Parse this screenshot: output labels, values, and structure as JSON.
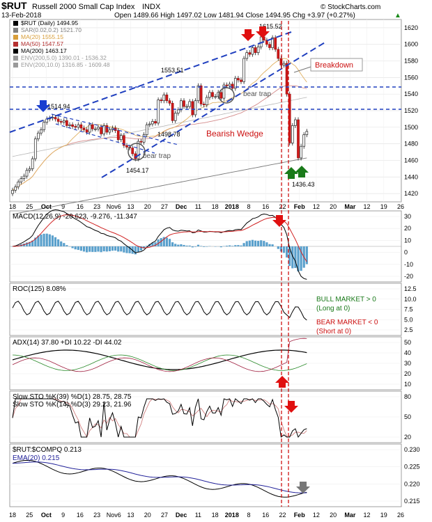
{
  "header": {
    "symbol": "$RUT",
    "name": "Russell 2000 Small Cap Index",
    "exchange": "INDX",
    "date": "13-Feb-2018",
    "ohlc": "Open 1489.66  High 1497.02  Low 1481.94  Close 1494.95  Chg +3.97 (+0.27%)",
    "close_marker": "▲",
    "brand": "© StockCharts.com"
  },
  "price_legend": [
    {
      "label": "$RUT (Daily) 1494.95",
      "color": "#000000"
    },
    {
      "label": "SAR(0.02,0.2) 1521.70",
      "color": "#7f7f7f"
    },
    {
      "label": "MA(20) 1555.15",
      "color": "#d89e3a"
    },
    {
      "label": "MA(50) 1547.57",
      "color": "#b53030"
    },
    {
      "label": "MA(200) 1463.17",
      "color": "#000000"
    },
    {
      "label": "ENV(200,5.0) 1390.01 - 1536.32",
      "color": "#9a9a9a"
    },
    {
      "label": "ENV(200,10.0) 1316.85 - 1609.48",
      "color": "#9a9a9a"
    }
  ],
  "annotations": {
    "peak_left": "1514.94",
    "peak_mid": "1553.51",
    "peak_top": "1615.52",
    "low_mid": "1498.78",
    "low_left": "1454.17",
    "low_right": "1436.43",
    "bear_trap_1": "bear trap",
    "bear_trap_2": "bear trap",
    "wedge": "Bearish Wedge",
    "breakdown": "Breakdown"
  },
  "x_labels": [
    "18",
    "25",
    "Oct",
    "9",
    "16",
    "23",
    "Nov6",
    "13",
    "20",
    "27",
    "Dec",
    "11",
    "18",
    "2018",
    "8",
    "16",
    "22",
    "Feb",
    "12",
    "20",
    "Mar",
    "12",
    "19",
    "26"
  ],
  "panels": {
    "macd": {
      "label": "MACD(12,26,9) -20.623, -9.276, -11.347",
      "ticks": [
        "30",
        "20",
        "10",
        "0",
        "-10",
        "-20"
      ]
    },
    "roc": {
      "label": "ROC(125) 8.08%",
      "ticks": [
        "12.5",
        "10.0",
        "7.5",
        "5.0",
        "2.5"
      ],
      "bull": "BULL MARKET > 0",
      "bull_sub": "(Long at 0)",
      "bear": "BEAR MARKET < 0",
      "bear_sub": "(Short at 0)"
    },
    "adx": {
      "label": "ADX(14) 37.80  +DI 10.22  -DI 44.02",
      "ticks": [
        "50",
        "40",
        "30",
        "20",
        "10"
      ]
    },
    "sto": {
      "label1": "Slow STO %K(39) %D(1) 28.75, 28.75",
      "label2": "Slow STO %K(14) %D(3) 29.23, 21.96",
      "ticks": [
        "80",
        "50",
        "20"
      ]
    },
    "rel": {
      "label": "$RUT:$COMPQ 0.213",
      "ema_label": "EMA(20) 0.215",
      "ticks": [
        "0.230",
        "0.225",
        "0.220",
        "0.215"
      ]
    }
  },
  "chart_data": {
    "type": "candlestick",
    "title": "$RUT Russell 2000 Small Cap Index INDX",
    "dates": [
      "2017-09-15",
      "2017-09-18",
      "2017-09-19",
      "2017-09-20",
      "2017-09-21",
      "2017-09-22",
      "2017-09-25",
      "2017-09-26",
      "2017-09-27",
      "2017-09-28",
      "2017-09-29",
      "2017-10-02",
      "2017-10-03",
      "2017-10-04",
      "2017-10-05",
      "2017-10-06",
      "2017-10-09",
      "2017-10-10",
      "2017-10-11",
      "2017-10-12",
      "2017-10-13",
      "2017-10-16",
      "2017-10-17",
      "2017-10-18",
      "2017-10-19",
      "2017-10-20",
      "2017-10-23",
      "2017-10-24",
      "2017-10-25",
      "2017-10-26",
      "2017-10-27",
      "2017-10-30",
      "2017-10-31",
      "2017-11-01",
      "2017-11-02",
      "2017-11-03",
      "2017-11-06",
      "2017-11-07",
      "2017-11-08",
      "2017-11-09",
      "2017-11-10",
      "2017-11-13",
      "2017-11-14",
      "2017-11-15",
      "2017-11-16",
      "2017-11-17",
      "2017-11-20",
      "2017-11-21",
      "2017-11-22",
      "2017-11-24",
      "2017-11-27",
      "2017-11-28",
      "2017-11-29",
      "2017-11-30",
      "2017-12-01",
      "2017-12-04",
      "2017-12-05",
      "2017-12-06",
      "2017-12-07",
      "2017-12-08",
      "2017-12-11",
      "2017-12-12",
      "2017-12-13",
      "2017-12-14",
      "2017-12-15",
      "2017-12-18",
      "2017-12-19",
      "2017-12-20",
      "2017-12-21",
      "2017-12-22",
      "2017-12-26",
      "2017-12-27",
      "2017-12-28",
      "2017-12-29",
      "2018-01-02",
      "2018-01-03",
      "2018-01-04",
      "2018-01-05",
      "2018-01-08",
      "2018-01-09",
      "2018-01-10",
      "2018-01-11",
      "2018-01-12",
      "2018-01-16",
      "2018-01-17",
      "2018-01-18",
      "2018-01-19",
      "2018-01-22",
      "2018-01-23",
      "2018-01-24",
      "2018-01-25",
      "2018-01-26",
      "2018-01-29",
      "2018-01-30",
      "2018-01-31",
      "2018-02-01",
      "2018-02-02",
      "2018-02-05",
      "2018-02-06",
      "2018-02-07",
      "2018-02-08",
      "2018-02-09",
      "2018-02-12",
      "2018-02-13"
    ],
    "close": [
      1424,
      1428,
      1434,
      1438,
      1441,
      1448,
      1450,
      1462,
      1486,
      1493,
      1497,
      1506,
      1510,
      1511,
      1512,
      1510,
      1507,
      1506,
      1508,
      1502,
      1503,
      1501,
      1500,
      1503,
      1499,
      1497,
      1494,
      1503,
      1498,
      1498,
      1500,
      1492,
      1502,
      1494,
      1497,
      1499,
      1496,
      1485,
      1490,
      1478,
      1476,
      1475,
      1468,
      1462,
      1483,
      1482,
      1491,
      1503,
      1504,
      1507,
      1505,
      1533,
      1532,
      1539,
      1532,
      1529,
      1508,
      1517,
      1521,
      1532,
      1525,
      1525,
      1531,
      1515,
      1532,
      1550,
      1528,
      1527,
      1536,
      1542,
      1537,
      1537,
      1542,
      1535,
      1551,
      1550,
      1552,
      1547,
      1559,
      1557,
      1555,
      1583,
      1590,
      1588,
      1596,
      1590,
      1597,
      1609,
      1605,
      1600,
      1596,
      1608,
      1594,
      1583,
      1575,
      1577,
      1540,
      1481,
      1502,
      1509,
      1463,
      1477,
      1491,
      1495
    ],
    "y_range": [
      1410,
      1630
    ],
    "horizontal_levels": [
      1548,
      1520
    ],
    "x_axis_labels": [
      "18",
      "25",
      "Oct",
      "9",
      "16",
      "23",
      "Nov6",
      "13",
      "20",
      "27",
      "Dec",
      "11",
      "18",
      "2018",
      "8",
      "16",
      "22",
      "Feb",
      "12",
      "20",
      "Mar",
      "12",
      "19",
      "26"
    ],
    "indicator_values": {
      "MACD": [
        -20.623,
        -9.276,
        -11.347
      ],
      "ROC_125": 8.08,
      "ADX_14": 37.8,
      "plus_DI": 10.22,
      "minus_DI": 44.02,
      "STO_39": [
        28.75,
        28.75
      ],
      "STO_14": [
        29.23,
        21.96
      ],
      "RUT_COMPQ": 0.213,
      "EMA_20": 0.215
    }
  }
}
